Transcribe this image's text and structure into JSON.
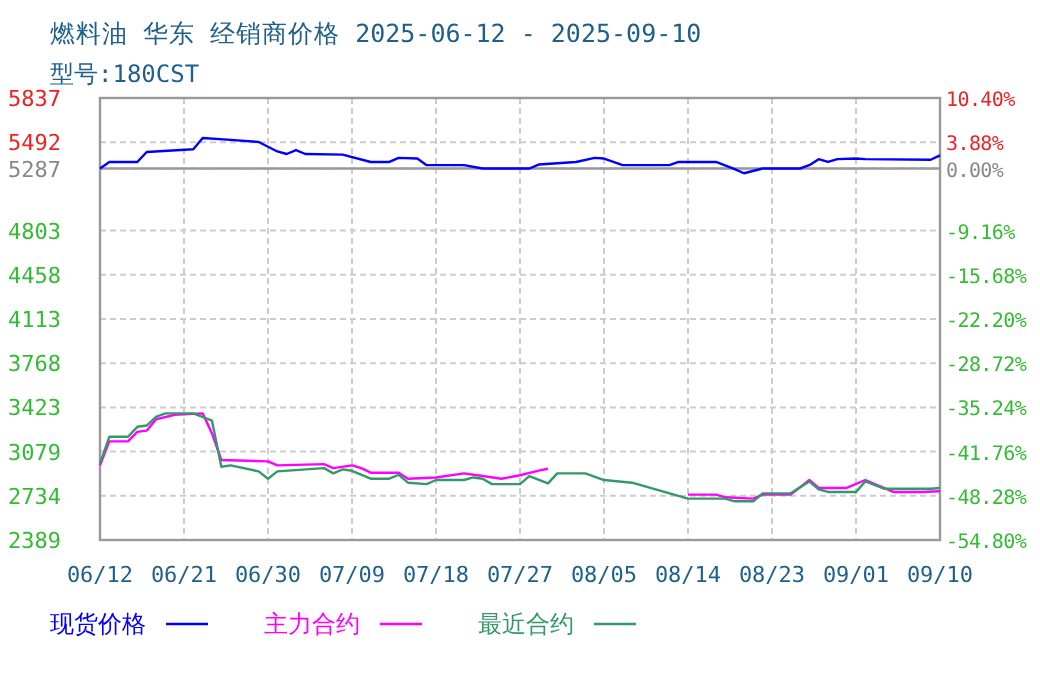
{
  "chart_data": {
    "type": "line",
    "title": "燃料油 华东 经销商价格 2025-06-12 - 2025-09-10",
    "subtitle": "型号:180CST",
    "xlim": [
      "2025-06-12",
      "2025-09-10"
    ],
    "xticks": [
      {
        "value": "2025-06-12",
        "label": "06/12"
      },
      {
        "value": "2025-06-21",
        "label": "06/21"
      },
      {
        "value": "2025-06-30",
        "label": "06/30"
      },
      {
        "value": "2025-07-09",
        "label": "07/09"
      },
      {
        "value": "2025-07-18",
        "label": "07/18"
      },
      {
        "value": "2025-07-27",
        "label": "07/27"
      },
      {
        "value": "2025-08-05",
        "label": "08/05"
      },
      {
        "value": "2025-08-14",
        "label": "08/14"
      },
      {
        "value": "2025-08-23",
        "label": "08/23"
      },
      {
        "value": "2025-09-01",
        "label": "09/01"
      },
      {
        "value": "2025-09-10",
        "label": "09/10"
      }
    ],
    "ylim": [
      2389,
      5837
    ],
    "yticks": [
      2389,
      2734,
      3079,
      3423,
      3768,
      4113,
      4458,
      4803,
      5287,
      5492,
      5837
    ],
    "y2lim": [
      -54.8,
      10.4
    ],
    "y2ticks": [
      {
        "value": -54.8,
        "label": "-54.80%"
      },
      {
        "value": -48.28,
        "label": "-48.28%"
      },
      {
        "value": -41.76,
        "label": "-41.76%"
      },
      {
        "value": -35.24,
        "label": "-35.24%"
      },
      {
        "value": -28.72,
        "label": "-28.72%"
      },
      {
        "value": -22.2,
        "label": "-22.20%"
      },
      {
        "value": -15.68,
        "label": "-15.68%"
      },
      {
        "value": -9.16,
        "label": "-9.16%"
      },
      {
        "value": 0,
        "label": "0.00%"
      },
      {
        "value": 3.88,
        "label": "3.88%"
      },
      {
        "value": 10.4,
        "label": "10.40%"
      }
    ],
    "grid": true,
    "legend": "bottom",
    "line_style": "solid",
    "ref_lines": [
      {
        "axis": "y",
        "value": 5287,
        "color": "#999999",
        "line_style": "solid"
      }
    ],
    "series": [
      {
        "name": "现货价格",
        "color": "#0000ff",
        "x": [
          "2025-06-12",
          "2025-06-13",
          "2025-06-16",
          "2025-06-17",
          "2025-06-22",
          "2025-06-23",
          "2025-06-26",
          "2025-06-29",
          "2025-07-01",
          "2025-07-02",
          "2025-07-03",
          "2025-07-04",
          "2025-07-08",
          "2025-07-11",
          "2025-07-13",
          "2025-07-14",
          "2025-07-16",
          "2025-07-17",
          "2025-07-21",
          "2025-07-23",
          "2025-07-28",
          "2025-07-29",
          "2025-08-02",
          "2025-08-04",
          "2025-08-05",
          "2025-08-07",
          "2025-08-12",
          "2025-08-13",
          "2025-08-17",
          "2025-08-19",
          "2025-08-20",
          "2025-08-22",
          "2025-08-26",
          "2025-08-27",
          "2025-08-28",
          "2025-08-29",
          "2025-08-30",
          "2025-09-01",
          "2025-09-02",
          "2025-09-09",
          "2025-09-10"
        ],
        "values": [
          5287,
          5338,
          5338,
          5416,
          5437,
          5525,
          5510,
          5494,
          5420,
          5400,
          5431,
          5400,
          5395,
          5338,
          5338,
          5370,
          5365,
          5313,
          5313,
          5287,
          5287,
          5318,
          5338,
          5370,
          5365,
          5313,
          5313,
          5338,
          5338,
          5282,
          5250,
          5287,
          5287,
          5313,
          5360,
          5338,
          5360,
          5365,
          5360,
          5355,
          5390
        ]
      },
      {
        "name": "主力合约",
        "color": "#ff00ff",
        "x": [
          "2025-06-12",
          "2025-06-13",
          "2025-06-15",
          "2025-06-16",
          "2025-06-17",
          "2025-06-18",
          "2025-06-20",
          "2025-06-23",
          "2025-06-24",
          "2025-06-25",
          "2025-06-30",
          "2025-07-01",
          "2025-07-06",
          "2025-07-07",
          "2025-07-09",
          "2025-07-10",
          "2025-07-11",
          "2025-07-14",
          "2025-07-15",
          "2025-07-18",
          "2025-07-21",
          "2025-07-23",
          "2025-07-25",
          "2025-07-27",
          "2025-07-29",
          "2025-07-30",
          "2025-07-31",
          "2025-08-14",
          "2025-08-17",
          "2025-08-18",
          "2025-08-21",
          "2025-08-22",
          "2025-08-25",
          "2025-08-27",
          "2025-08-28",
          "2025-08-31",
          "2025-09-02",
          "2025-09-05",
          "2025-09-08",
          "2025-09-10"
        ],
        "values": [
          2971,
          3158,
          3158,
          3232,
          3242,
          3330,
          3366,
          3377,
          3220,
          3013,
          3002,
          2971,
          2981,
          2950,
          2971,
          2950,
          2914,
          2914,
          2867,
          2877,
          2909,
          2888,
          2867,
          2894,
          2930,
          2945,
          null,
          2743,
          2743,
          2722,
          2712,
          2743,
          2743,
          2857,
          2795,
          2795,
          2857,
          2764,
          2764,
          2769
        ]
      },
      {
        "name": "最近合约",
        "color": "#339966",
        "x": [
          "2025-06-12",
          "2025-06-13",
          "2025-06-15",
          "2025-06-16",
          "2025-06-17",
          "2025-06-18",
          "2025-06-19",
          "2025-06-22",
          "2025-06-24",
          "2025-06-25",
          "2025-06-26",
          "2025-06-29",
          "2025-06-30",
          "2025-07-01",
          "2025-07-06",
          "2025-07-07",
          "2025-07-08",
          "2025-07-09",
          "2025-07-11",
          "2025-07-13",
          "2025-07-14",
          "2025-07-15",
          "2025-07-17",
          "2025-07-18",
          "2025-07-21",
          "2025-07-22",
          "2025-07-23",
          "2025-07-24",
          "2025-07-27",
          "2025-07-28",
          "2025-07-30",
          "2025-07-31",
          "2025-08-03",
          "2025-08-05",
          "2025-08-08",
          "2025-08-11",
          "2025-08-14",
          "2025-08-18",
          "2025-08-19",
          "2025-08-21",
          "2025-08-22",
          "2025-08-25",
          "2025-08-27",
          "2025-08-28",
          "2025-08-29",
          "2025-09-01",
          "2025-09-02",
          "2025-09-04",
          "2025-09-09",
          "2025-09-10"
        ],
        "values": [
          2987,
          3194,
          3194,
          3272,
          3282,
          3350,
          3377,
          3377,
          3320,
          2960,
          2971,
          2924,
          2867,
          2924,
          2950,
          2909,
          2940,
          2929,
          2867,
          2867,
          2898,
          2836,
          2825,
          2857,
          2857,
          2877,
          2867,
          2825,
          2825,
          2888,
          2831,
          2909,
          2909,
          2857,
          2836,
          2774,
          2712,
          2712,
          2691,
          2691,
          2753,
          2753,
          2846,
          2784,
          2764,
          2764,
          2846,
          2789,
          2789,
          2795
        ]
      }
    ]
  }
}
